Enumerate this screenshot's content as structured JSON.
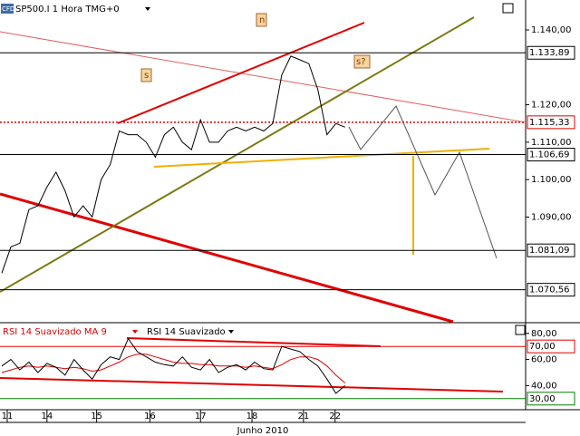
{
  "chart_data": [
    {
      "type": "line",
      "logo": "CFD",
      "title": "SP500.I 1 Hora TMG+0",
      "values": [
        1075,
        1082,
        1083,
        1092,
        1093,
        1098,
        1102,
        1097,
        1090,
        1093,
        1090,
        1100,
        1104,
        1113,
        1112,
        1112,
        1110,
        1106,
        1112,
        1114,
        1110,
        1108,
        1116,
        1110,
        1110,
        1113,
        1114,
        1113,
        1114,
        1113,
        1115,
        1128,
        1133,
        1132,
        1131,
        1124,
        1112,
        1115,
        1114
      ],
      "color": "#000000",
      "xlim": [
        0,
        58
      ],
      "ylim": [
        1062,
        1148
      ],
      "yticks": [
        {
          "value": 1140,
          "label": "1.140,00"
        },
        {
          "value": 1120,
          "label": "1.120,00"
        },
        {
          "value": 1110,
          "label": "1.110,00"
        },
        {
          "value": 1100,
          "label": "1.100,00"
        },
        {
          "value": 1090,
          "label": "1.090,00"
        }
      ],
      "levels": [
        {
          "value": 1133.89,
          "label": "1.133,89",
          "color": "#000000",
          "style": "solid"
        },
        {
          "value": 1115.33,
          "label": "1.115,33",
          "color": "#e00000",
          "style": "dotted"
        },
        {
          "value": 1106.69,
          "label": "1.106,69",
          "color": "#000000",
          "style": "solid"
        },
        {
          "value": 1081.09,
          "label": "1.081,09",
          "color": "#000000",
          "style": "solid"
        },
        {
          "value": 1070.56,
          "label": "1.070,56",
          "color": "#000000",
          "style": "solid"
        }
      ],
      "annotations": [
        "n",
        "s",
        "s?"
      ]
    },
    {
      "type": "line",
      "series": [
        {
          "name": "RSI 14 Suavizado MA 9",
          "color": "#e00000",
          "values": [
            50,
            52,
            54,
            55,
            54,
            55,
            54,
            53,
            54,
            53,
            51,
            52,
            55,
            58,
            62,
            64,
            64,
            62,
            60,
            58,
            57,
            57,
            56,
            56,
            55,
            55,
            55,
            54,
            55,
            54,
            53,
            56,
            60,
            62,
            62,
            60,
            55,
            48,
            42
          ]
        },
        {
          "name": "RSI 14 Suavizado",
          "color": "#000000",
          "values": [
            55,
            60,
            52,
            58,
            50,
            57,
            54,
            48,
            60,
            52,
            45,
            56,
            62,
            60,
            76,
            66,
            62,
            58,
            56,
            55,
            62,
            54,
            52,
            60,
            50,
            54,
            56,
            52,
            58,
            53,
            52,
            70,
            68,
            66,
            60,
            55,
            45,
            34,
            40
          ]
        }
      ],
      "xlim": [
        0,
        58
      ],
      "ylim": [
        21.5,
        87.5
      ],
      "yticks": [
        {
          "value": 80,
          "label": "80,00"
        },
        {
          "value": 60,
          "label": "60,00"
        },
        {
          "value": 40,
          "label": "40,00"
        }
      ],
      "levels": [
        {
          "value": 70,
          "label": "70,00",
          "color": "#e00000",
          "style": "solid"
        },
        {
          "value": 30,
          "label": "30,00",
          "color": "#008000",
          "style": "solid"
        }
      ],
      "xticks": [
        {
          "value": 0.6,
          "label": "11"
        },
        {
          "value": 5,
          "label": "14"
        },
        {
          "value": 10.5,
          "label": "15"
        },
        {
          "value": 16.4,
          "label": "16"
        },
        {
          "value": 22,
          "label": "17"
        },
        {
          "value": 27.7,
          "label": "18"
        },
        {
          "value": 33.4,
          "label": "21"
        },
        {
          "value": 36.9,
          "label": "22"
        }
      ],
      "xlabel": "Junho 2010"
    }
  ]
}
